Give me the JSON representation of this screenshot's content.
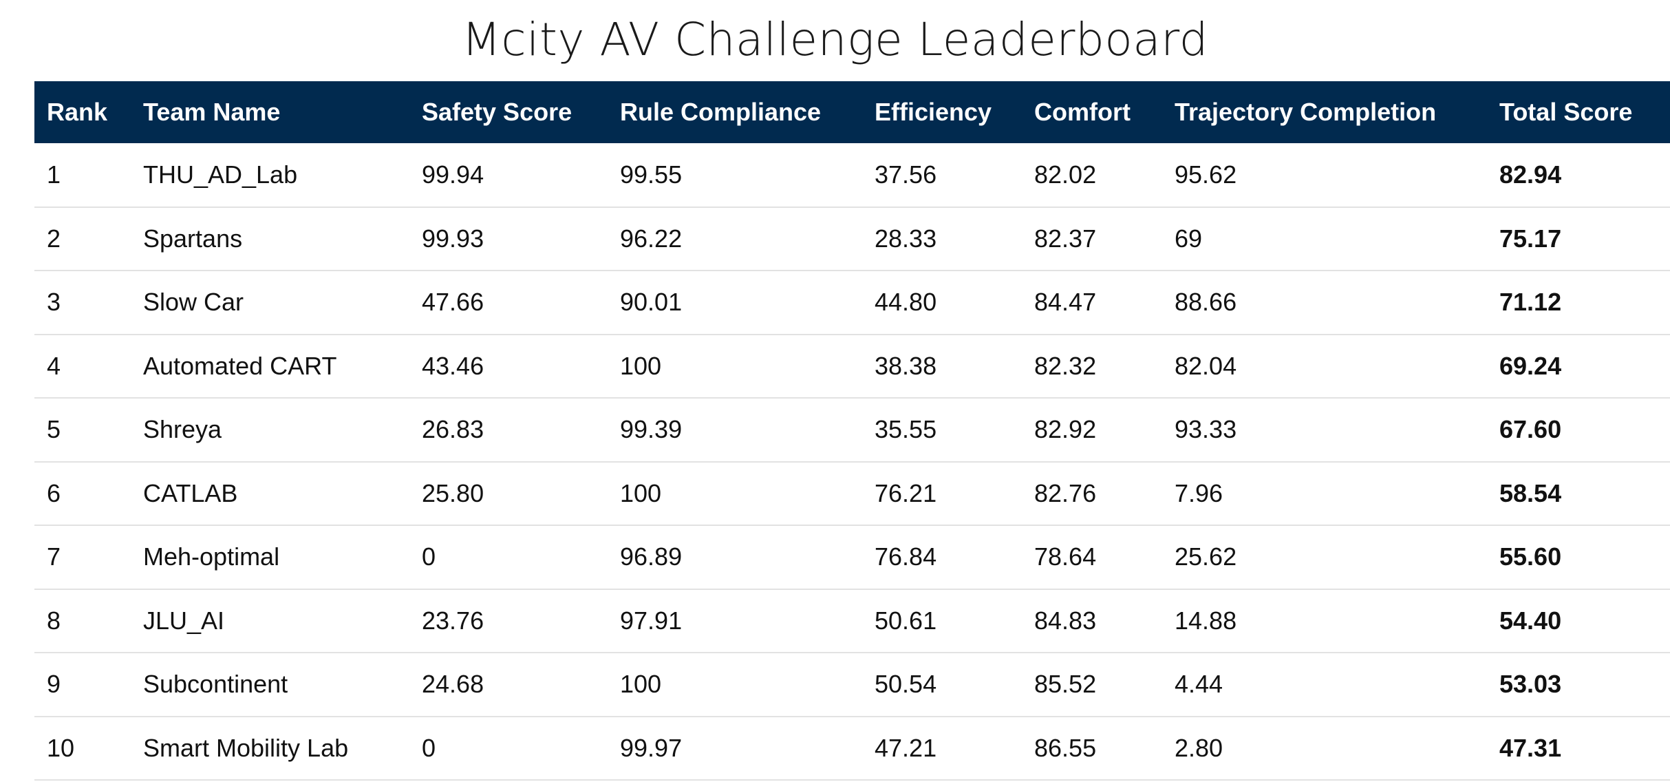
{
  "title": "Mcity AV Challenge Leaderboard",
  "table": {
    "headers": [
      "Rank",
      "Team Name",
      "Safety Score",
      "Rule Compliance",
      "Efficiency",
      "Comfort",
      "Trajectory Completion",
      "Total Score"
    ],
    "rows": [
      [
        "1",
        "THU_AD_Lab",
        "99.94",
        "99.55",
        "37.56",
        "82.02",
        "95.62",
        "82.94"
      ],
      [
        "2",
        "Spartans",
        "99.93",
        "96.22",
        "28.33",
        "82.37",
        "69",
        "75.17"
      ],
      [
        "3",
        "Slow Car",
        "47.66",
        "90.01",
        "44.80",
        "84.47",
        "88.66",
        "71.12"
      ],
      [
        "4",
        "Automated CART",
        "43.46",
        "100",
        "38.38",
        "82.32",
        "82.04",
        "69.24"
      ],
      [
        "5",
        "Shreya",
        "26.83",
        "99.39",
        "35.55",
        "82.92",
        "93.33",
        "67.60"
      ],
      [
        "6",
        "CATLAB",
        "25.80",
        "100",
        "76.21",
        "82.76",
        "7.96",
        "58.54"
      ],
      [
        "7",
        "Meh-optimal",
        "0",
        "96.89",
        "76.84",
        "78.64",
        "25.62",
        "55.60"
      ],
      [
        "8",
        "JLU_AI",
        "23.76",
        "97.91",
        "50.61",
        "84.83",
        "14.88",
        "54.40"
      ],
      [
        "9",
        "Subcontinent",
        "24.68",
        "100",
        "50.54",
        "85.52",
        "4.44",
        "53.03"
      ],
      [
        "10",
        "Smart Mobility Lab",
        "0",
        "99.97",
        "47.21",
        "86.55",
        "2.80",
        "47.31"
      ]
    ]
  },
  "colors": {
    "header_background": "#012a4f",
    "header_text": "#ffffff",
    "row_divider": "#e2e2e2"
  }
}
